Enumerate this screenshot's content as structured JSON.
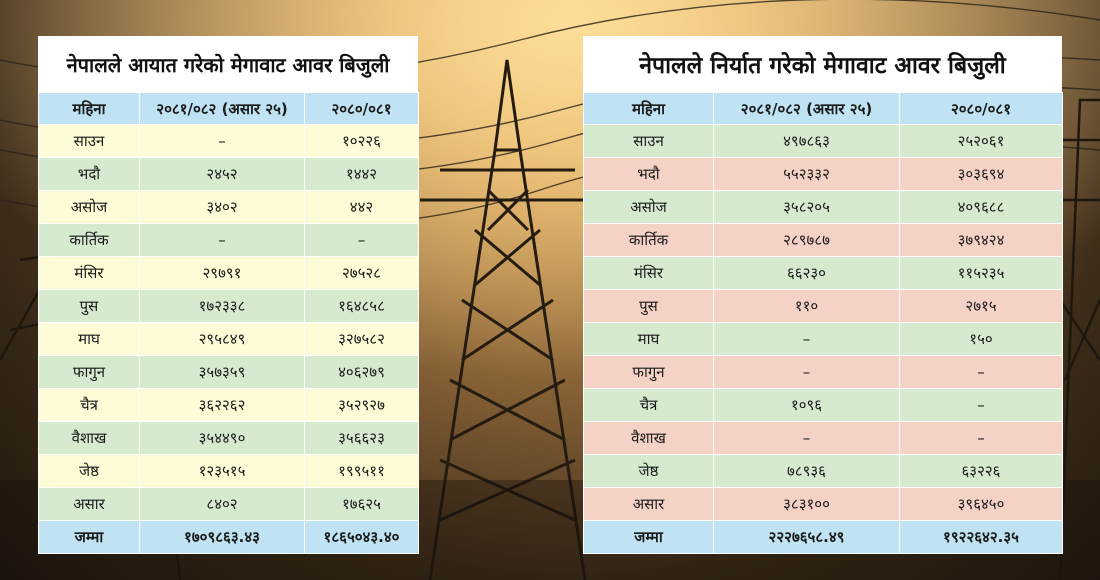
{
  "import_table": {
    "title": "नेपालले आयात गरेको मेगावाट आवर बिजुली",
    "headers": [
      "महिना",
      "२०८१/०८२ (असार २५)",
      "२०८०/०८१"
    ],
    "rows": [
      {
        "month": "साउन",
        "y1": "–",
        "y2": "१०२२६"
      },
      {
        "month": "भदौ",
        "y1": "२४५२",
        "y2": "१४४२"
      },
      {
        "month": "असोज",
        "y1": "३४०२",
        "y2": "४४२"
      },
      {
        "month": "कार्तिक",
        "y1": "–",
        "y2": "–"
      },
      {
        "month": "मंसिर",
        "y1": "२९७९१",
        "y2": "२७५२८"
      },
      {
        "month": "पुस",
        "y1": "१७२३३८",
        "y2": "१६४८५८"
      },
      {
        "month": "माघ",
        "y1": "२९५८४९",
        "y2": "३२७५८२"
      },
      {
        "month": "फागुन",
        "y1": "३५७३५९",
        "y2": "४०६२७९"
      },
      {
        "month": "चैत्र",
        "y1": "३६२२६२",
        "y2": "३५२९२७"
      },
      {
        "month": "वैशाख",
        "y1": "३५४४९०",
        "y2": "३५६६२३"
      },
      {
        "month": "जेष्ठ",
        "y1": "१२३५१५",
        "y2": "१९९५११"
      },
      {
        "month": "असार",
        "y1": "८४०२",
        "y2": "१७६२५"
      }
    ],
    "total": {
      "label": "जम्मा",
      "y1": "१७०९८६३.४३",
      "y2": "१८६५०४३.४०"
    }
  },
  "export_table": {
    "title": "नेपालले निर्यात गरेको मेगावाट आवर बिजुली",
    "headers": [
      "महिना",
      "२०८१/०८२ (असार २५)",
      "२०८०/०८१"
    ],
    "rows": [
      {
        "month": "साउन",
        "y1": "४९७८६३",
        "y2": "२५२०६१"
      },
      {
        "month": "भदौ",
        "y1": "५५२३३२",
        "y2": "३०३६९४"
      },
      {
        "month": "असोज",
        "y1": "३५८२०५",
        "y2": "४०९६८८"
      },
      {
        "month": "कार्तिक",
        "y1": "२८९७८७",
        "y2": "३७९४२४"
      },
      {
        "month": "मंसिर",
        "y1": "६६२३०",
        "y2": "११५२३५"
      },
      {
        "month": "पुस",
        "y1": "११०",
        "y2": "२७१५"
      },
      {
        "month": "माघ",
        "y1": "–",
        "y2": "१५०"
      },
      {
        "month": "फागुन",
        "y1": "–",
        "y2": "–"
      },
      {
        "month": "चैत्र",
        "y1": "१०९६",
        "y2": "–"
      },
      {
        "month": "वैशाख",
        "y1": "–",
        "y2": "–"
      },
      {
        "month": "जेष्ठ",
        "y1": "७८९३६",
        "y2": "६३२२६"
      },
      {
        "month": "असार",
        "y1": "३८३१००",
        "y2": "३९६४५०"
      }
    ],
    "total": {
      "label": "जम्मा",
      "y1": "२२२७६५८.४९",
      "y2": "१९२२६४२.३५"
    }
  },
  "colors": {
    "header": "#bfe3f3",
    "row_yellow": "#fefbd7",
    "row_green": "#d6ead0",
    "row_pink": "#f5d2c6"
  }
}
